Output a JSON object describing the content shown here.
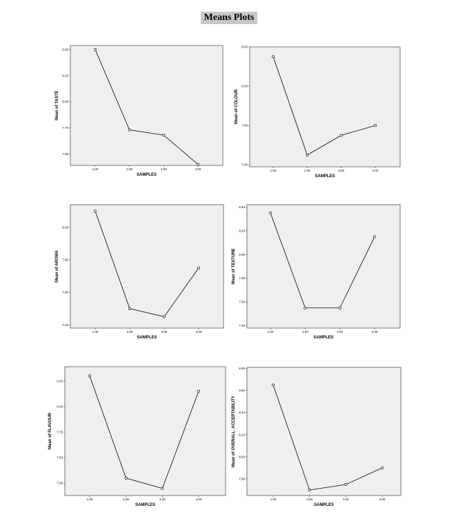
{
  "page": {
    "title": "Means Plots"
  },
  "chart_data": [
    {
      "type": "line",
      "title": "",
      "xlabel": "SAMPLES",
      "ylabel": "Mean of TASTE",
      "categories": [
        "1.00",
        "2.00",
        "3.00",
        "4.00"
      ],
      "values": [
        8.5,
        7.73,
        7.68,
        7.4
      ],
      "ylim": [
        7.39,
        8.54
      ],
      "yticks": [
        7.5,
        7.75,
        8.0,
        8.25,
        8.5
      ],
      "ytick_labels": [
        "7.50",
        "7.75",
        "8.00",
        "8.25",
        "8.50"
      ],
      "grid": false,
      "line_color": "#000000",
      "background": "#efefef"
    },
    {
      "type": "line",
      "title": "",
      "xlabel": "SAMPLES",
      "ylabel": "Mean of COLOUR",
      "categories": [
        "1.00",
        "2.00",
        "3.00",
        "4.00"
      ],
      "values": [
        8.15,
        7.65,
        7.75,
        7.8
      ],
      "ylim": [
        7.59,
        8.2
      ],
      "yticks": [
        7.6,
        7.8,
        8.0,
        8.2
      ],
      "ytick_labels": [
        "7.60",
        "7.80",
        "8.00",
        "8.20"
      ],
      "grid": false,
      "line_color": "#000000",
      "background": "#efefef"
    },
    {
      "type": "line",
      "title": "",
      "xlabel": "SAMPLES",
      "ylabel": "Mean of AROMA",
      "categories": [
        "1.00",
        "2.00",
        "3.00",
        "4.00"
      ],
      "values": [
        8.1,
        7.5,
        7.45,
        7.75
      ],
      "ylim": [
        7.38,
        8.14
      ],
      "yticks": [
        7.4,
        7.6,
        7.8,
        8.0
      ],
      "ytick_labels": [
        "7.40",
        "7.60",
        "7.80",
        "8.00"
      ],
      "grid": false,
      "line_color": "#000000",
      "background": "#efefef"
    },
    {
      "type": "line",
      "title": "",
      "xlabel": "SAMPLES",
      "ylabel": "Mean of TEXTURE",
      "categories": [
        "1.00",
        "2.00",
        "3.00",
        "4.00"
      ],
      "values": [
        8.35,
        7.55,
        7.55,
        8.15
      ],
      "ylim": [
        7.38,
        8.42
      ],
      "yticks": [
        7.4,
        7.6,
        7.8,
        8.0,
        8.2,
        8.4
      ],
      "ytick_labels": [
        "7.40",
        "7.60",
        "7.80",
        "8.00",
        "8.20",
        "8.40"
      ],
      "grid": false,
      "line_color": "#000000",
      "background": "#efefef"
    },
    {
      "type": "line",
      "title": "",
      "xlabel": "SAMPLES",
      "ylabel": "Mean of FLAVOUR",
      "categories": [
        "1.00",
        "2.00",
        "3.00",
        "4.00"
      ],
      "values": [
        8.3,
        7.3,
        7.2,
        8.15
      ],
      "ylim": [
        7.13,
        8.39
      ],
      "yticks": [
        7.25,
        7.5,
        7.75,
        8.0,
        8.25
      ],
      "ytick_labels": [
        "7.25",
        "7.50",
        "7.75",
        "8.00",
        "8.25"
      ],
      "grid": false,
      "line_color": "#000000",
      "background": "#efefef"
    },
    {
      "type": "line",
      "title": "",
      "xlabel": "SAMPLES",
      "ylabel": "Mean of OVERALL_ACCEPTABILITY",
      "categories": [
        "1.00",
        "2.00",
        "3.00",
        "4.00"
      ],
      "values": [
        8.65,
        7.7,
        7.75,
        7.9
      ],
      "ylim": [
        7.65,
        8.81
      ],
      "yticks": [
        7.8,
        8.0,
        8.2,
        8.4,
        8.6,
        8.8
      ],
      "ytick_labels": [
        "7.80",
        "8.00",
        "8.20",
        "8.40",
        "8.60",
        "8.80"
      ],
      "grid": false,
      "line_color": "#000000",
      "background": "#efefef"
    }
  ]
}
